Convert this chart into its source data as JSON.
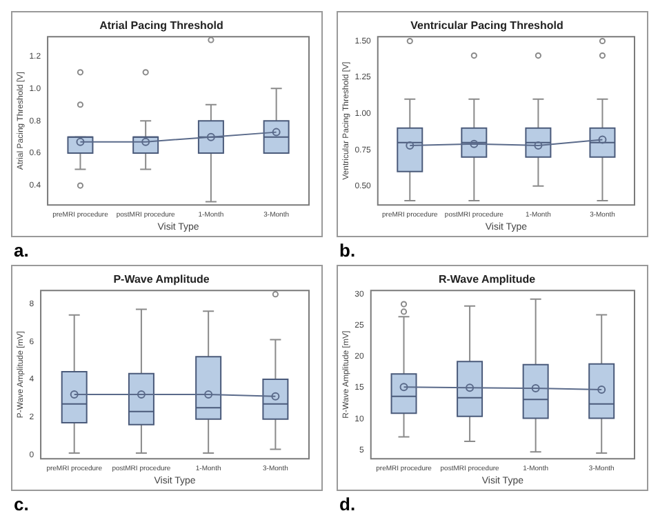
{
  "chart_data": [
    {
      "type": "box",
      "title": "Atrial Pacing Threshold",
      "xlabel": "Visit Type",
      "ylabel": "Atrial Pacing Threshold [V]",
      "annotations": [
        "a."
      ],
      "categories": [
        "preMRI procedure",
        "postMRI procedure",
        "1-Month",
        "3-Month"
      ],
      "ylim": [
        0.28,
        1.32
      ],
      "yticks": [
        0.4,
        0.6,
        0.8,
        {
          "value": 1,
          "label": "1.0"
        },
        1.2
      ],
      "grid": false,
      "legend": false,
      "series": [
        {
          "type": "box",
          "color": "#b8cce4",
          "boxes": [
            {
              "low": 0.5,
              "q1": 0.6,
              "median": 0.7,
              "q3": 0.7,
              "high": 0.7,
              "outliers": [
                0.4,
                0.9,
                1.1
              ]
            },
            {
              "low": 0.5,
              "q1": 0.6,
              "median": 0.7,
              "q3": 0.7,
              "high": 0.8,
              "outliers": [
                1.1
              ]
            },
            {
              "low": 0.3,
              "q1": 0.6,
              "median": 0.7,
              "q3": 0.8,
              "high": 0.9,
              "outliers": [
                1.3
              ]
            },
            {
              "low": 0.6,
              "q1": 0.6,
              "median": 0.7,
              "q3": 0.8,
              "high": 1.0
            }
          ]
        },
        {
          "type": "line",
          "color": "#5a6a8a",
          "marker": "circle",
          "values": [
            0.67,
            0.67,
            0.7,
            0.73
          ]
        }
      ]
    },
    {
      "type": "box",
      "title": "Ventricular Pacing Threshold",
      "xlabel": "Visit Type",
      "ylabel": "Ventricular Pacing Threshold [V]",
      "annotations": [
        "b."
      ],
      "categories": [
        "preMRI procedure",
        "postMRI procedure",
        "1-Month",
        "3-Month"
      ],
      "ylim": [
        0.37,
        1.53
      ],
      "yticks": [
        {
          "value": 0.5,
          "label": "0.50"
        },
        0.75,
        {
          "value": 1,
          "label": "1.00"
        },
        1.25,
        {
          "value": 1.5,
          "label": "1.50"
        }
      ],
      "grid": false,
      "legend": false,
      "series": [
        {
          "type": "box",
          "color": "#b8cce4",
          "boxes": [
            {
              "low": 0.4,
              "q1": 0.6,
              "median": 0.8,
              "q3": 0.9,
              "high": 1.1,
              "outliers": [
                1.5
              ]
            },
            {
              "low": 0.4,
              "q1": 0.7,
              "median": 0.8,
              "q3": 0.9,
              "high": 1.1,
              "outliers": [
                1.4
              ]
            },
            {
              "low": 0.5,
              "q1": 0.7,
              "median": 0.8,
              "q3": 0.9,
              "high": 1.1,
              "outliers": [
                1.4
              ]
            },
            {
              "low": 0.4,
              "q1": 0.7,
              "median": 0.8,
              "q3": 0.9,
              "high": 1.1,
              "outliers": [
                1.4,
                1.5
              ]
            }
          ]
        },
        {
          "type": "line",
          "color": "#5a6a8a",
          "marker": "circle",
          "values": [
            0.78,
            0.79,
            0.78,
            0.82
          ]
        }
      ]
    },
    {
      "type": "box",
      "title": "P-Wave Amplitude",
      "xlabel": "Visit Type",
      "ylabel": "P-Wave Amplitude [mV]",
      "annotations": [
        "c."
      ],
      "categories": [
        "preMRI procedure",
        "postMRI procedure",
        "1-Month",
        "3-Month"
      ],
      "ylim": [
        -0.2,
        8.7
      ],
      "yticks": [
        0,
        2,
        4,
        6,
        8
      ],
      "grid": false,
      "legend": false,
      "series": [
        {
          "type": "box",
          "color": "#b8cce4",
          "boxes": [
            {
              "low": 0.1,
              "q1": 1.7,
              "median": 2.7,
              "q3": 4.4,
              "high": 7.4
            },
            {
              "low": 0.1,
              "q1": 1.6,
              "median": 2.3,
              "q3": 4.3,
              "high": 7.7
            },
            {
              "low": 0.1,
              "q1": 1.9,
              "median": 2.5,
              "q3": 5.2,
              "high": 7.6
            },
            {
              "low": 0.3,
              "q1": 1.9,
              "median": 2.7,
              "q3": 4.0,
              "high": 6.1,
              "outliers": [
                8.5
              ]
            }
          ]
        },
        {
          "type": "line",
          "color": "#5a6a8a",
          "marker": "circle",
          "values": [
            3.2,
            3.2,
            3.2,
            3.1
          ]
        }
      ]
    },
    {
      "type": "box",
      "title": "R-Wave Amplitude",
      "xlabel": "Visit Type",
      "ylabel": "R-Wave Amplitude [mV]",
      "annotations": [
        "d."
      ],
      "categories": [
        "preMRI procedure",
        "postMRI procedure",
        "1-Month",
        "3-Month"
      ],
      "ylim": [
        3.6,
        30.6
      ],
      "yticks": [
        5,
        10,
        15,
        20,
        25,
        30
      ],
      "grid": false,
      "legend": false,
      "series": [
        {
          "type": "box",
          "color": "#b8cce4",
          "boxes": [
            {
              "low": 7.1,
              "q1": 10.9,
              "median": 13.6,
              "q3": 17.2,
              "high": 26.4,
              "outliers": [
                27.2,
                28.4
              ]
            },
            {
              "low": 6.4,
              "q1": 10.4,
              "median": 13.4,
              "q3": 19.2,
              "high": 28.1
            },
            {
              "low": 4.7,
              "q1": 10.1,
              "median": 13.1,
              "q3": 18.7,
              "high": 29.2
            },
            {
              "low": 4.5,
              "q1": 10.1,
              "median": 12.4,
              "q3": 18.8,
              "high": 26.7
            }
          ]
        },
        {
          "type": "line",
          "color": "#5a6a8a",
          "marker": "circle",
          "values": [
            15.1,
            15.0,
            14.9,
            14.7
          ]
        }
      ]
    }
  ]
}
